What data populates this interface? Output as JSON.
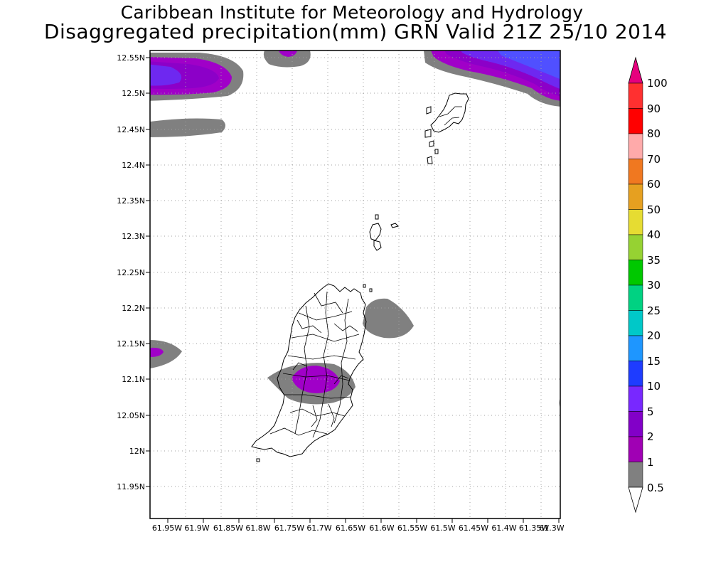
{
  "header": {
    "title": "Caribbean Institute for Meteorology and Hydrology",
    "subtitle": "Disaggregated precipitation(mm) GRN Valid 21Z 25/10 2014"
  },
  "map": {
    "lat_ticks": [
      "12.55N",
      "12.5N",
      "12.45N",
      "12.4N",
      "12.35N",
      "12.3N",
      "12.25N",
      "12.2N",
      "12.15N",
      "12.1N",
      "12.05N",
      "12N",
      "11.95N"
    ],
    "lon_ticks": [
      "61.95W",
      "61.9W",
      "61.85W",
      "61.8W",
      "61.75W",
      "61.7W",
      "61.65W",
      "61.6W",
      "61.55W",
      "61.5W",
      "61.45W",
      "61.4W",
      "61.35W",
      "61.3W"
    ]
  },
  "colorbar": {
    "levels": [
      {
        "label": "100",
        "color": "#e6007e"
      },
      {
        "label": "90",
        "color": "#ff3030"
      },
      {
        "label": "80",
        "color": "#ff0000"
      },
      {
        "label": "70",
        "color": "#ffaaaa"
      },
      {
        "label": "60",
        "color": "#f07820"
      },
      {
        "label": "50",
        "color": "#e6a020"
      },
      {
        "label": "40",
        "color": "#e6dc32"
      },
      {
        "label": "35",
        "color": "#96d232"
      },
      {
        "label": "30",
        "color": "#00c800"
      },
      {
        "label": "25",
        "color": "#00d282"
      },
      {
        "label": "20",
        "color": "#00c8c8"
      },
      {
        "label": "15",
        "color": "#1e96ff"
      },
      {
        "label": "10",
        "color": "#1e3cff"
      },
      {
        "label": "5",
        "color": "#7828ff"
      },
      {
        "label": "2",
        "color": "#8200c8"
      },
      {
        "label": "1",
        "color": "#a000b4"
      },
      {
        "label": "0.5",
        "color": "#808080"
      }
    ]
  },
  "colors": {
    "gray_05": "#808080",
    "purple_1": "#a000c8",
    "magenta_2": "#aa00aa",
    "violet_5": "#7d14e6",
    "blue_10": "#4b3cff"
  }
}
